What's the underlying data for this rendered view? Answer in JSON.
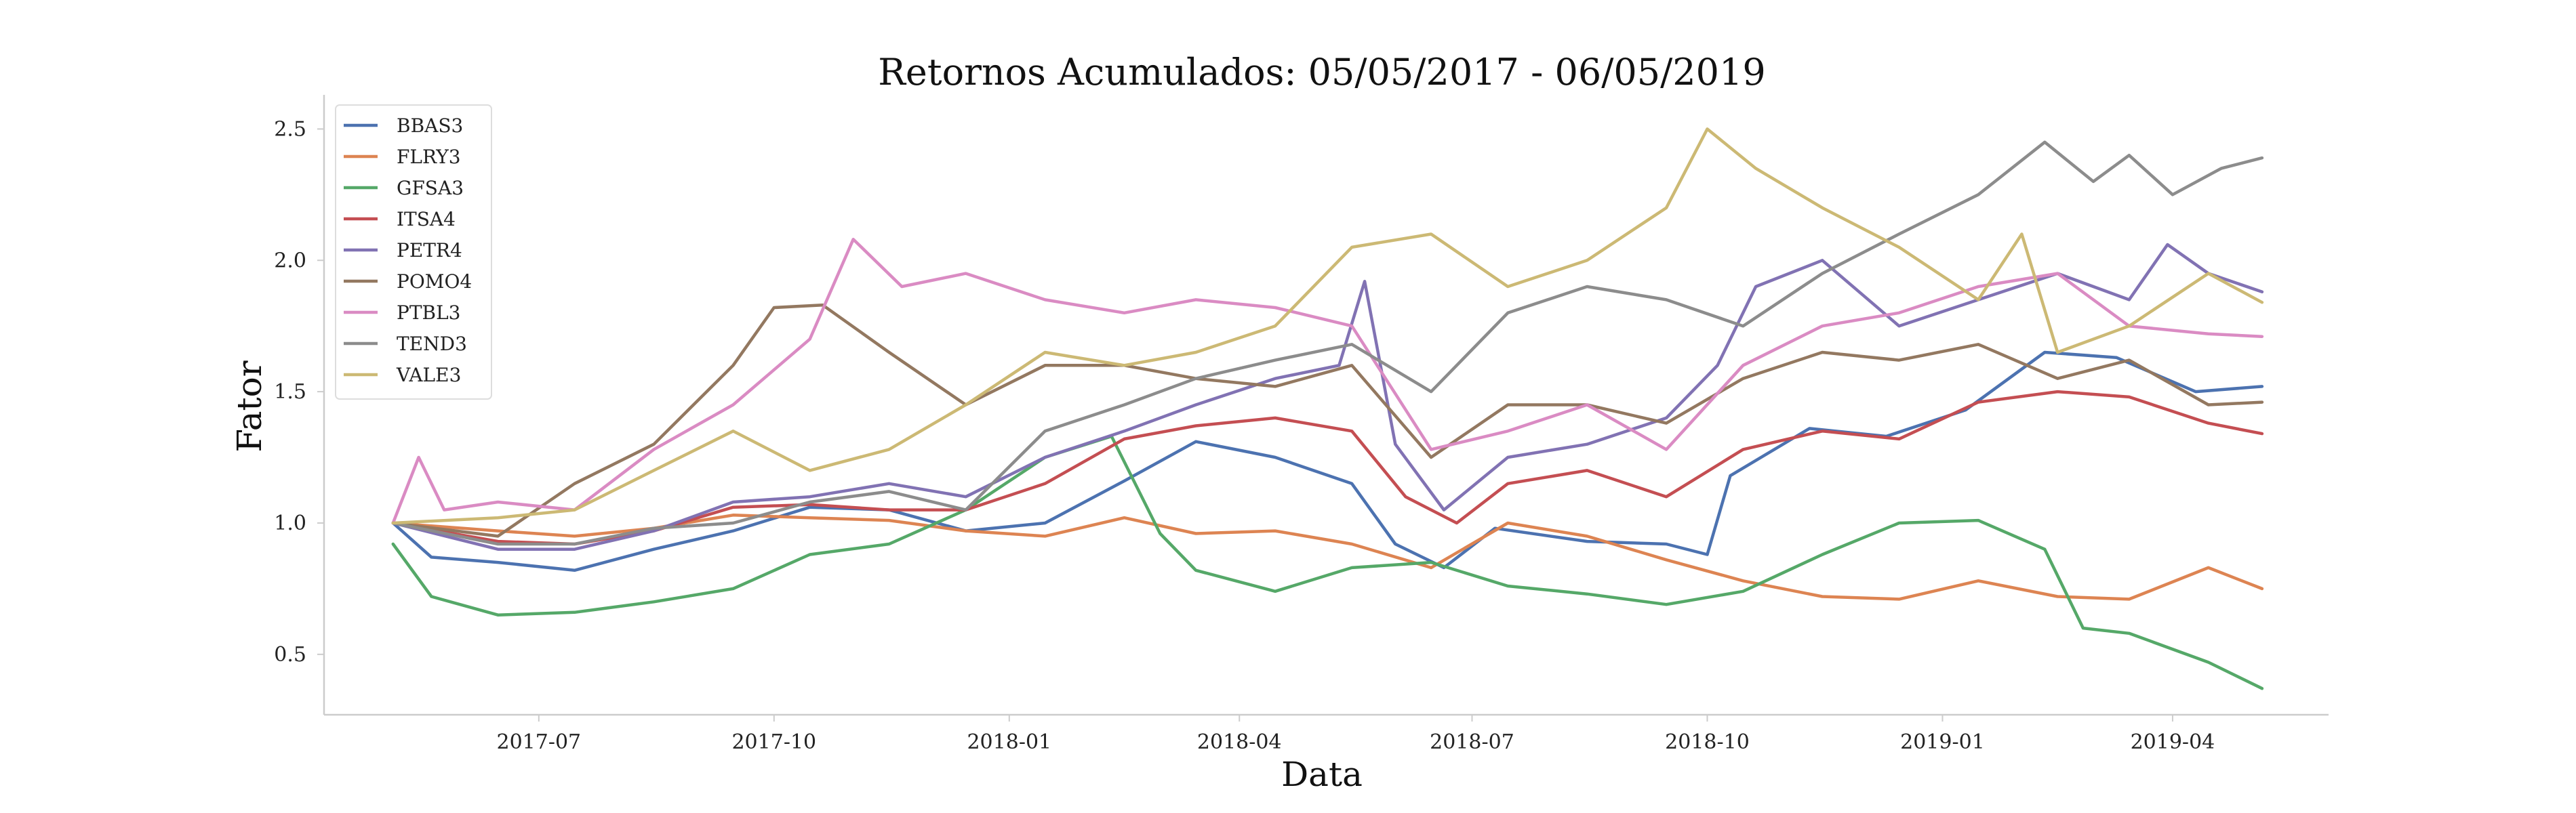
{
  "chart_data": {
    "type": "line",
    "title": "Retornos Acumulados: 05/05/2017 - 06/05/2019",
    "xlabel": "Data",
    "ylabel": "Fator",
    "x_tick_labels": [
      "2017-07",
      "2017-10",
      "2018-01",
      "2018-04",
      "2018-07",
      "2018-10",
      "2019-01",
      "2019-04"
    ],
    "y_tick_labels": [
      "0.5",
      "1.0",
      "1.5",
      "2.0",
      "2.5"
    ],
    "x_range": [
      "2017-04-08",
      "2019-06-01"
    ],
    "ylim": [
      0.27,
      2.63
    ],
    "grid": false,
    "legend_position": "top-left",
    "colors": {
      "BBAS3": "#4c72b0",
      "FLRY3": "#dd8452",
      "GFSA3": "#55a868",
      "ITSA4": "#c44e52",
      "PETR4": "#8172b3",
      "POMO4": "#937860",
      "PTBL3": "#da8bc3",
      "TEND3": "#8c8c8c",
      "VALE3": "#ccb974"
    },
    "series": [
      {
        "name": "BBAS3",
        "points": [
          [
            "2017-05-05",
            1.0
          ],
          [
            "2017-05-20",
            0.87
          ],
          [
            "2017-06-15",
            0.85
          ],
          [
            "2017-07-15",
            0.82
          ],
          [
            "2017-08-15",
            0.9
          ],
          [
            "2017-09-15",
            0.97
          ],
          [
            "2017-10-15",
            1.06
          ],
          [
            "2017-11-15",
            1.05
          ],
          [
            "2017-12-15",
            0.97
          ],
          [
            "2018-01-15",
            1.0
          ],
          [
            "2018-02-15",
            1.16
          ],
          [
            "2018-03-15",
            1.31
          ],
          [
            "2018-04-15",
            1.25
          ],
          [
            "2018-05-15",
            1.15
          ],
          [
            "2018-06-01",
            0.92
          ],
          [
            "2018-06-20",
            0.83
          ],
          [
            "2018-07-10",
            0.98
          ],
          [
            "2018-08-15",
            0.93
          ],
          [
            "2018-09-15",
            0.92
          ],
          [
            "2018-10-01",
            0.88
          ],
          [
            "2018-10-10",
            1.18
          ],
          [
            "2018-11-10",
            1.36
          ],
          [
            "2018-12-10",
            1.33
          ],
          [
            "2019-01-10",
            1.43
          ],
          [
            "2019-02-10",
            1.65
          ],
          [
            "2019-03-10",
            1.63
          ],
          [
            "2019-04-10",
            1.5
          ],
          [
            "2019-05-06",
            1.52
          ]
        ]
      },
      {
        "name": "FLRY3",
        "points": [
          [
            "2017-05-05",
            1.0
          ],
          [
            "2017-06-15",
            0.97
          ],
          [
            "2017-07-15",
            0.95
          ],
          [
            "2017-08-15",
            0.98
          ],
          [
            "2017-09-15",
            1.03
          ],
          [
            "2017-10-15",
            1.02
          ],
          [
            "2017-11-15",
            1.01
          ],
          [
            "2017-12-15",
            0.97
          ],
          [
            "2018-01-15",
            0.95
          ],
          [
            "2018-02-15",
            1.02
          ],
          [
            "2018-03-15",
            0.96
          ],
          [
            "2018-04-15",
            0.97
          ],
          [
            "2018-05-15",
            0.92
          ],
          [
            "2018-06-15",
            0.83
          ],
          [
            "2018-07-15",
            1.0
          ],
          [
            "2018-08-15",
            0.95
          ],
          [
            "2018-09-15",
            0.86
          ],
          [
            "2018-10-15",
            0.78
          ],
          [
            "2018-11-15",
            0.72
          ],
          [
            "2018-12-15",
            0.71
          ],
          [
            "2019-01-15",
            0.78
          ],
          [
            "2019-02-15",
            0.72
          ],
          [
            "2019-03-15",
            0.71
          ],
          [
            "2019-04-15",
            0.83
          ],
          [
            "2019-05-06",
            0.75
          ]
        ]
      },
      {
        "name": "GFSA3",
        "points": [
          [
            "2017-05-05",
            0.92
          ],
          [
            "2017-05-20",
            0.72
          ],
          [
            "2017-06-15",
            0.65
          ],
          [
            "2017-07-15",
            0.66
          ],
          [
            "2017-08-15",
            0.7
          ],
          [
            "2017-09-15",
            0.75
          ],
          [
            "2017-10-15",
            0.88
          ],
          [
            "2017-11-15",
            0.92
          ],
          [
            "2017-12-15",
            1.05
          ],
          [
            "2018-01-15",
            1.25
          ],
          [
            "2018-02-10",
            1.33
          ],
          [
            "2018-03-01",
            0.96
          ],
          [
            "2018-03-15",
            0.82
          ],
          [
            "2018-04-15",
            0.74
          ],
          [
            "2018-05-15",
            0.83
          ],
          [
            "2018-06-15",
            0.85
          ],
          [
            "2018-07-15",
            0.76
          ],
          [
            "2018-08-15",
            0.73
          ],
          [
            "2018-09-15",
            0.69
          ],
          [
            "2018-10-15",
            0.74
          ],
          [
            "2018-11-15",
            0.88
          ],
          [
            "2018-12-15",
            1.0
          ],
          [
            "2019-01-15",
            1.01
          ],
          [
            "2019-02-10",
            0.9
          ],
          [
            "2019-02-25",
            0.6
          ],
          [
            "2019-03-15",
            0.58
          ],
          [
            "2019-04-15",
            0.47
          ],
          [
            "2019-05-06",
            0.37
          ]
        ]
      },
      {
        "name": "ITSA4",
        "points": [
          [
            "2017-05-05",
            1.0
          ],
          [
            "2017-06-15",
            0.93
          ],
          [
            "2017-07-15",
            0.92
          ],
          [
            "2017-08-15",
            0.97
          ],
          [
            "2017-09-15",
            1.06
          ],
          [
            "2017-10-15",
            1.07
          ],
          [
            "2017-11-15",
            1.05
          ],
          [
            "2017-12-15",
            1.05
          ],
          [
            "2018-01-15",
            1.15
          ],
          [
            "2018-02-15",
            1.32
          ],
          [
            "2018-03-15",
            1.37
          ],
          [
            "2018-04-15",
            1.4
          ],
          [
            "2018-05-15",
            1.35
          ],
          [
            "2018-06-05",
            1.1
          ],
          [
            "2018-06-25",
            1.0
          ],
          [
            "2018-07-15",
            1.15
          ],
          [
            "2018-08-15",
            1.2
          ],
          [
            "2018-09-15",
            1.1
          ],
          [
            "2018-10-15",
            1.28
          ],
          [
            "2018-11-15",
            1.35
          ],
          [
            "2018-12-15",
            1.32
          ],
          [
            "2019-01-15",
            1.46
          ],
          [
            "2019-02-15",
            1.5
          ],
          [
            "2019-03-15",
            1.48
          ],
          [
            "2019-04-15",
            1.38
          ],
          [
            "2019-05-06",
            1.34
          ]
        ]
      },
      {
        "name": "PETR4",
        "points": [
          [
            "2017-05-05",
            1.0
          ],
          [
            "2017-06-15",
            0.9
          ],
          [
            "2017-07-15",
            0.9
          ],
          [
            "2017-08-15",
            0.97
          ],
          [
            "2017-09-15",
            1.08
          ],
          [
            "2017-10-15",
            1.1
          ],
          [
            "2017-11-15",
            1.15
          ],
          [
            "2017-12-15",
            1.1
          ],
          [
            "2018-01-15",
            1.25
          ],
          [
            "2018-02-15",
            1.35
          ],
          [
            "2018-03-15",
            1.45
          ],
          [
            "2018-04-15",
            1.55
          ],
          [
            "2018-05-10",
            1.6
          ],
          [
            "2018-05-20",
            1.92
          ],
          [
            "2018-06-01",
            1.3
          ],
          [
            "2018-06-20",
            1.05
          ],
          [
            "2018-07-15",
            1.25
          ],
          [
            "2018-08-15",
            1.3
          ],
          [
            "2018-09-15",
            1.4
          ],
          [
            "2018-10-05",
            1.6
          ],
          [
            "2018-10-20",
            1.9
          ],
          [
            "2018-11-15",
            2.0
          ],
          [
            "2018-12-15",
            1.75
          ],
          [
            "2019-01-15",
            1.85
          ],
          [
            "2019-02-15",
            1.95
          ],
          [
            "2019-03-15",
            1.85
          ],
          [
            "2019-03-30",
            2.06
          ],
          [
            "2019-04-15",
            1.95
          ],
          [
            "2019-05-06",
            1.88
          ]
        ]
      },
      {
        "name": "POMO4",
        "points": [
          [
            "2017-05-05",
            1.0
          ],
          [
            "2017-06-15",
            0.95
          ],
          [
            "2017-07-15",
            1.15
          ],
          [
            "2017-08-15",
            1.3
          ],
          [
            "2017-09-15",
            1.6
          ],
          [
            "2017-10-01",
            1.82
          ],
          [
            "2017-10-20",
            1.83
          ],
          [
            "2017-11-15",
            1.65
          ],
          [
            "2017-12-15",
            1.45
          ],
          [
            "2018-01-15",
            1.6
          ],
          [
            "2018-02-15",
            1.6
          ],
          [
            "2018-03-15",
            1.55
          ],
          [
            "2018-04-15",
            1.52
          ],
          [
            "2018-05-15",
            1.6
          ],
          [
            "2018-06-15",
            1.25
          ],
          [
            "2018-07-15",
            1.45
          ],
          [
            "2018-08-15",
            1.45
          ],
          [
            "2018-09-15",
            1.38
          ],
          [
            "2018-10-15",
            1.55
          ],
          [
            "2018-11-15",
            1.65
          ],
          [
            "2018-12-15",
            1.62
          ],
          [
            "2019-01-15",
            1.68
          ],
          [
            "2019-02-15",
            1.55
          ],
          [
            "2019-03-15",
            1.62
          ],
          [
            "2019-04-15",
            1.45
          ],
          [
            "2019-05-06",
            1.46
          ]
        ]
      },
      {
        "name": "PTBL3",
        "points": [
          [
            "2017-05-05",
            1.0
          ],
          [
            "2017-05-15",
            1.25
          ],
          [
            "2017-05-25",
            1.05
          ],
          [
            "2017-06-15",
            1.08
          ],
          [
            "2017-07-15",
            1.05
          ],
          [
            "2017-08-15",
            1.28
          ],
          [
            "2017-09-15",
            1.45
          ],
          [
            "2017-10-15",
            1.7
          ],
          [
            "2017-11-01",
            2.08
          ],
          [
            "2017-11-20",
            1.9
          ],
          [
            "2017-12-15",
            1.95
          ],
          [
            "2018-01-15",
            1.85
          ],
          [
            "2018-02-15",
            1.8
          ],
          [
            "2018-03-15",
            1.85
          ],
          [
            "2018-04-15",
            1.82
          ],
          [
            "2018-05-15",
            1.75
          ],
          [
            "2018-06-15",
            1.28
          ],
          [
            "2018-07-15",
            1.35
          ],
          [
            "2018-08-15",
            1.45
          ],
          [
            "2018-09-15",
            1.28
          ],
          [
            "2018-10-15",
            1.6
          ],
          [
            "2018-11-15",
            1.75
          ],
          [
            "2018-12-15",
            1.8
          ],
          [
            "2019-01-15",
            1.9
          ],
          [
            "2019-02-15",
            1.95
          ],
          [
            "2019-03-15",
            1.75
          ],
          [
            "2019-04-15",
            1.72
          ],
          [
            "2019-05-06",
            1.71
          ]
        ]
      },
      {
        "name": "TEND3",
        "points": [
          [
            "2017-05-05",
            1.0
          ],
          [
            "2017-06-15",
            0.92
          ],
          [
            "2017-07-15",
            0.92
          ],
          [
            "2017-08-15",
            0.98
          ],
          [
            "2017-09-15",
            1.0
          ],
          [
            "2017-10-15",
            1.08
          ],
          [
            "2017-11-15",
            1.12
          ],
          [
            "2017-12-15",
            1.05
          ],
          [
            "2018-01-15",
            1.35
          ],
          [
            "2018-02-15",
            1.45
          ],
          [
            "2018-03-15",
            1.55
          ],
          [
            "2018-04-15",
            1.62
          ],
          [
            "2018-05-15",
            1.68
          ],
          [
            "2018-06-15",
            1.5
          ],
          [
            "2018-07-15",
            1.8
          ],
          [
            "2018-08-15",
            1.9
          ],
          [
            "2018-09-15",
            1.85
          ],
          [
            "2018-10-15",
            1.75
          ],
          [
            "2018-11-15",
            1.95
          ],
          [
            "2018-12-15",
            2.1
          ],
          [
            "2019-01-15",
            2.25
          ],
          [
            "2019-02-10",
            2.45
          ],
          [
            "2019-03-01",
            2.3
          ],
          [
            "2019-03-15",
            2.4
          ],
          [
            "2019-04-01",
            2.25
          ],
          [
            "2019-04-20",
            2.35
          ],
          [
            "2019-05-06",
            2.39
          ]
        ]
      },
      {
        "name": "VALE3",
        "points": [
          [
            "2017-05-05",
            1.0
          ],
          [
            "2017-06-15",
            1.02
          ],
          [
            "2017-07-15",
            1.05
          ],
          [
            "2017-08-15",
            1.2
          ],
          [
            "2017-09-15",
            1.35
          ],
          [
            "2017-10-15",
            1.2
          ],
          [
            "2017-11-15",
            1.28
          ],
          [
            "2017-12-15",
            1.45
          ],
          [
            "2018-01-15",
            1.65
          ],
          [
            "2018-02-15",
            1.6
          ],
          [
            "2018-03-15",
            1.65
          ],
          [
            "2018-04-15",
            1.75
          ],
          [
            "2018-05-15",
            2.05
          ],
          [
            "2018-06-15",
            2.1
          ],
          [
            "2018-07-15",
            1.9
          ],
          [
            "2018-08-15",
            2.0
          ],
          [
            "2018-09-15",
            2.2
          ],
          [
            "2018-10-01",
            2.5
          ],
          [
            "2018-10-20",
            2.35
          ],
          [
            "2018-11-15",
            2.2
          ],
          [
            "2018-12-15",
            2.05
          ],
          [
            "2019-01-15",
            1.85
          ],
          [
            "2019-02-01",
            2.1
          ],
          [
            "2019-02-15",
            1.65
          ],
          [
            "2019-03-15",
            1.75
          ],
          [
            "2019-04-15",
            1.95
          ],
          [
            "2019-05-06",
            1.84
          ]
        ]
      }
    ]
  }
}
